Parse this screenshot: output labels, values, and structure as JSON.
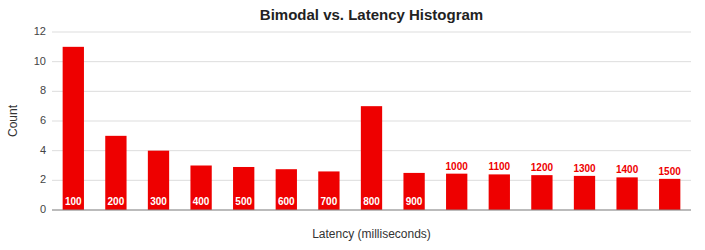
{
  "chart_data": {
    "type": "bar",
    "title": "Bimodal vs. Latency Histogram",
    "xlabel": "Latency (milliseconds)",
    "ylabel": "Count",
    "categories": [
      100,
      200,
      300,
      400,
      500,
      600,
      700,
      800,
      900,
      1000,
      1100,
      1200,
      1300,
      1400,
      1500
    ],
    "values": [
      11.0,
      5.0,
      4.0,
      3.0,
      2.9,
      2.75,
      2.6,
      7.0,
      2.5,
      2.45,
      2.4,
      2.35,
      2.3,
      2.2,
      2.1
    ],
    "color": "#ee0000",
    "ylim": [
      0,
      12
    ],
    "yticks": [
      0,
      2,
      4,
      6,
      8,
      10,
      12
    ],
    "grid": true,
    "tick_labels": "y"
  }
}
